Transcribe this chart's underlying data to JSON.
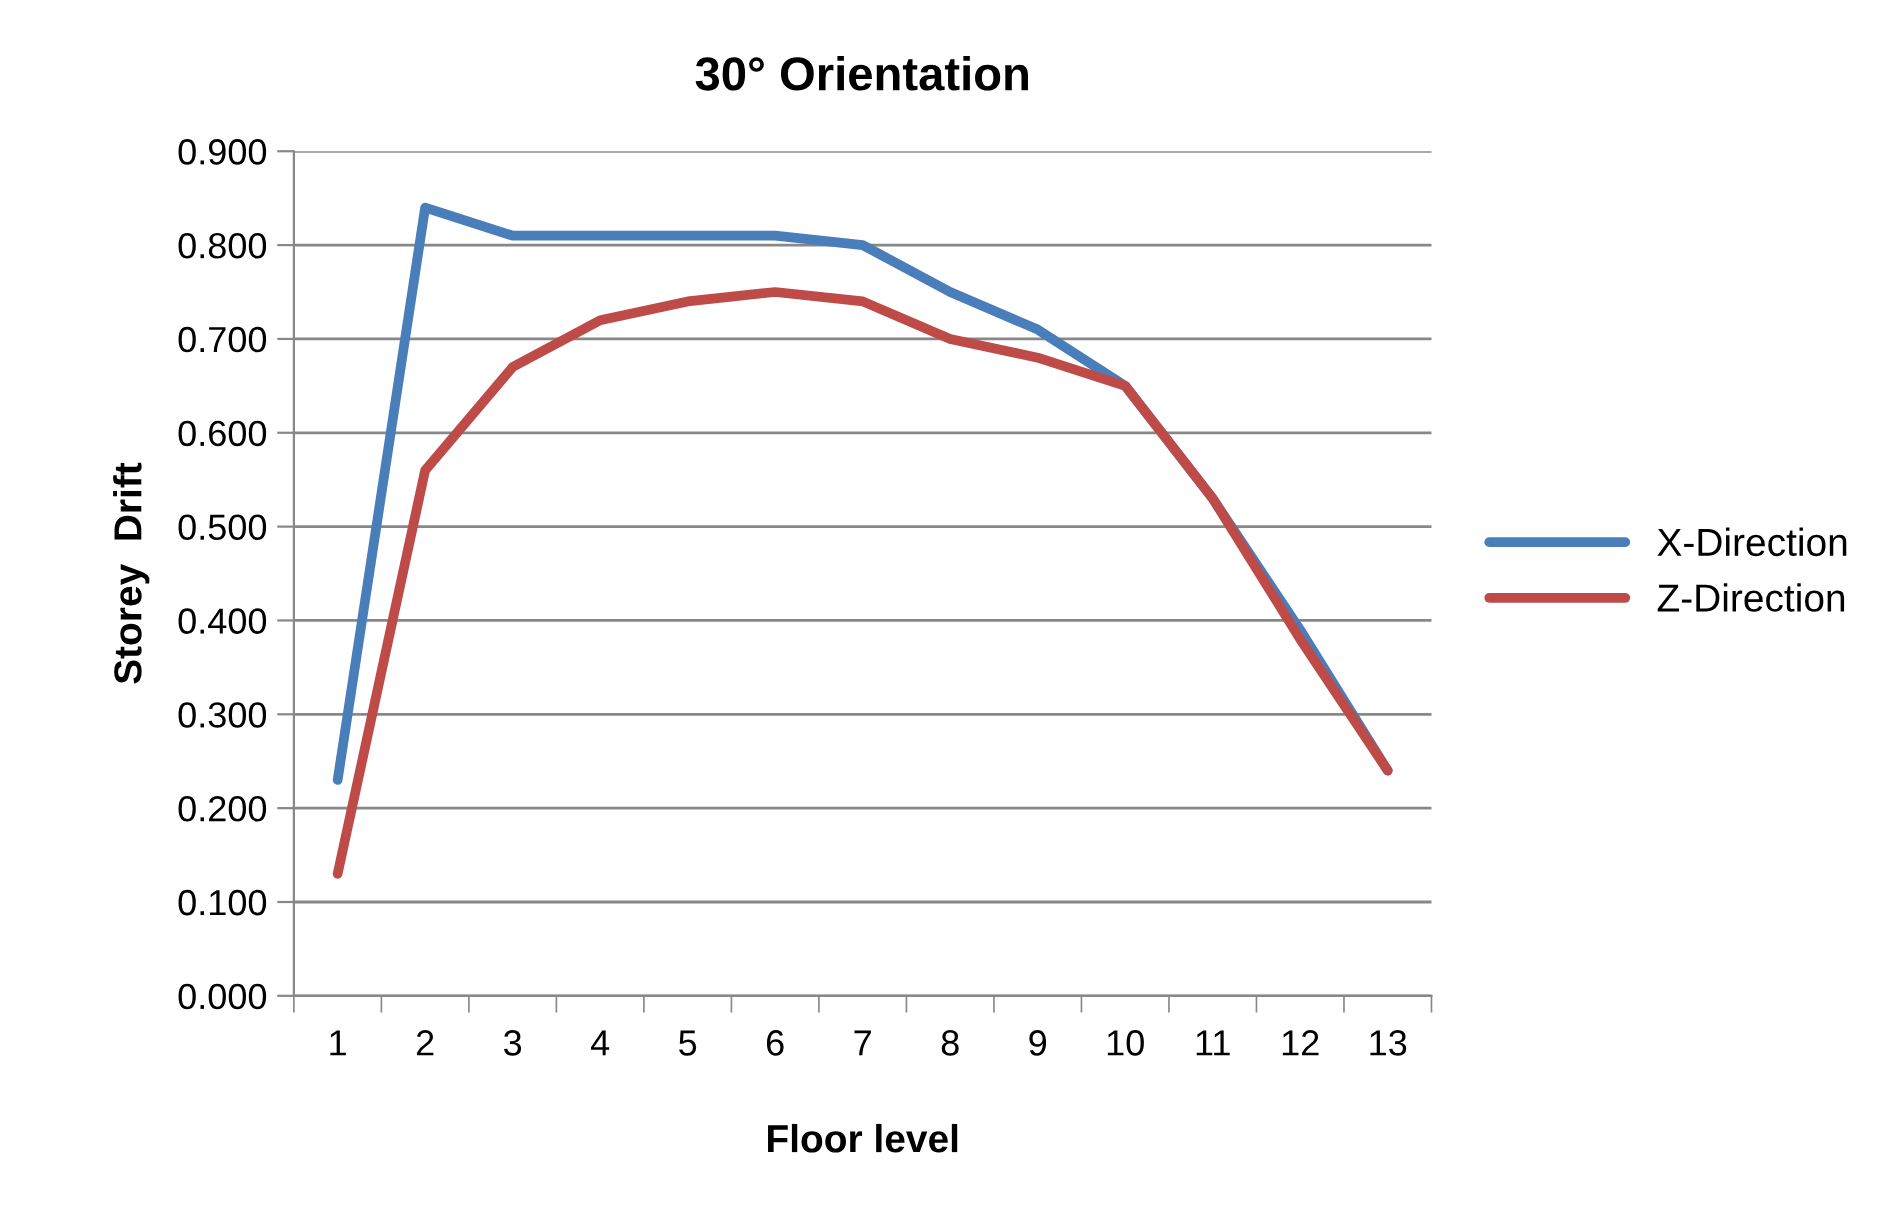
{
  "chart_data": {
    "type": "line",
    "title": "30° Orientation",
    "xlabel": "Floor level",
    "ylabel": "Storey  Drift",
    "categories": [
      "1",
      "2",
      "3",
      "4",
      "5",
      "6",
      "7",
      "8",
      "9",
      "10",
      "11",
      "12",
      "13"
    ],
    "series": [
      {
        "name": "X-Direction",
        "color": "#4a7ebb",
        "values": [
          0.23,
          0.84,
          0.81,
          0.81,
          0.81,
          0.81,
          0.8,
          0.75,
          0.71,
          0.65,
          0.53,
          0.39,
          0.24
        ]
      },
      {
        "name": "Z-Direction",
        "color": "#be4b48",
        "values": [
          0.13,
          0.56,
          0.67,
          0.72,
          0.74,
          0.75,
          0.74,
          0.7,
          0.68,
          0.65,
          0.53,
          0.38,
          0.24
        ]
      }
    ],
    "ylim": [
      0,
      0.9
    ],
    "yticks": [
      {
        "value": 0,
        "label": "0.000"
      },
      {
        "value": 0.1,
        "label": "0.100"
      },
      {
        "value": 0.2,
        "label": "0.200"
      },
      {
        "value": 0.3,
        "label": "0.300"
      },
      {
        "value": 0.4,
        "label": "0.400"
      },
      {
        "value": 0.5,
        "label": "0.500"
      },
      {
        "value": 0.6,
        "label": "0.600"
      },
      {
        "value": 0.7,
        "label": "0.700"
      },
      {
        "value": 0.8,
        "label": "0.800"
      },
      {
        "value": 0.9,
        "label": "0.900"
      }
    ],
    "grid": "y",
    "legend": "right",
    "marker": "none",
    "line_style": "solid"
  }
}
